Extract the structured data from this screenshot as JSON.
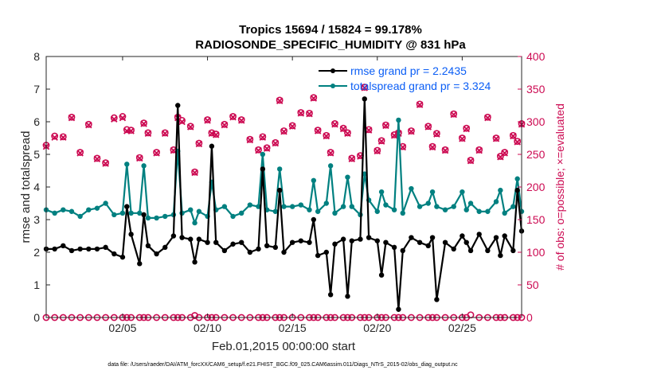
{
  "chart_data": {
    "type": "line",
    "title": "Tropics 15694 / 15824 = 99.178%",
    "subtitle": "RADIOSONDE_SPECIFIC_HUMIDITY @ 831 hPa",
    "xlabel": "Feb.01,2015 00:00:00 start",
    "ylabel": "rmse and totalspread",
    "y2label": "# of obs: o=possible; ×=evaluated",
    "xlim": [
      0.5,
      28.5
    ],
    "ylim": [
      0,
      8
    ],
    "y2lim": [
      0,
      400
    ],
    "xticks": [
      {
        "x": 5,
        "label": "02/05"
      },
      {
        "x": 10,
        "label": "02/10"
      },
      {
        "x": 15,
        "label": "02/15"
      },
      {
        "x": 20,
        "label": "02/20"
      },
      {
        "x": 25,
        "label": "02/25"
      }
    ],
    "yticks": [
      "0",
      "1",
      "2",
      "3",
      "4",
      "5",
      "6",
      "7",
      "8"
    ],
    "y2ticks": [
      "0",
      "50",
      "100",
      "150",
      "200",
      "250",
      "300",
      "350",
      "400"
    ],
    "legend_position": "top-right",
    "footnote": "data file: /Users/raeder/DAI/ATM_forcXX/CAM6_setup/f.e21.FHIST_BGC.f09_025.CAM6assim.011/Diags_NTrS_2015-02/obs_diag_output.nc",
    "x": [
      0.5,
      1,
      1.5,
      2,
      2.5,
      3,
      3.5,
      4,
      4.5,
      5,
      5.25,
      5.5,
      6,
      6.25,
      6.5,
      7,
      7.5,
      8,
      8.25,
      8.5,
      9,
      9.25,
      9.5,
      10,
      10.25,
      10.5,
      11,
      11.5,
      12,
      12.5,
      13,
      13.25,
      13.5,
      14,
      14.25,
      14.5,
      15,
      15.5,
      16,
      16.25,
      16.5,
      17,
      17.25,
      17.5,
      18,
      18.25,
      18.5,
      19,
      19.25,
      19.5,
      20,
      20.25,
      20.5,
      21,
      21.25,
      21.5,
      22,
      22.5,
      23,
      23.25,
      23.5,
      24,
      24.5,
      25,
      25.25,
      25.5,
      26,
      26.5,
      27,
      27.25,
      27.5,
      28,
      28.25,
      28.5
    ],
    "series": [
      {
        "name": "rmse grand pr = 2.2435",
        "axis": "left",
        "marker": "dot",
        "values": [
          2.1,
          2.1,
          2.2,
          2.05,
          2.1,
          2.1,
          2.1,
          2.15,
          1.95,
          1.85,
          3.4,
          2.55,
          1.65,
          3.15,
          2.2,
          1.95,
          2.15,
          2.5,
          6.5,
          2.45,
          2.4,
          1.7,
          2.4,
          2.3,
          5.25,
          2.3,
          2.05,
          2.25,
          2.3,
          2.0,
          2.1,
          4.55,
          2.2,
          2.15,
          3.9,
          2.0,
          2.3,
          2.35,
          2.3,
          3.0,
          1.9,
          2.0,
          0.7,
          2.25,
          2.4,
          0.65,
          2.35,
          2.4,
          6.7,
          2.45,
          2.35,
          1.3,
          2.3,
          2.15,
          0.25,
          2.05,
          2.45,
          2.3,
          2.2,
          2.45,
          0.55,
          2.3,
          2.1,
          2.5,
          2.3,
          2.05,
          2.55,
          2.05,
          2.45,
          1.9,
          2.5,
          2.05,
          3.9,
          2.65
        ]
      },
      {
        "name": "totalspread grand pr = 3.324",
        "axis": "left",
        "marker": "dot",
        "values": [
          3.3,
          3.2,
          3.3,
          3.25,
          3.1,
          3.3,
          3.35,
          3.5,
          3.15,
          3.2,
          4.7,
          3.2,
          3.2,
          4.65,
          3.05,
          3.05,
          3.1,
          3.15,
          5.1,
          3.2,
          3.3,
          2.9,
          3.25,
          3.1,
          4.15,
          3.3,
          3.4,
          3.1,
          3.2,
          3.45,
          3.4,
          5.0,
          3.3,
          3.25,
          4.55,
          3.4,
          3.4,
          3.45,
          3.3,
          4.2,
          3.25,
          3.5,
          4.65,
          3.2,
          3.4,
          4.3,
          3.4,
          3.15,
          4.4,
          3.6,
          3.25,
          3.85,
          3.45,
          3.3,
          6.05,
          3.2,
          3.95,
          3.4,
          3.5,
          3.85,
          3.4,
          3.3,
          3.4,
          3.85,
          3.3,
          3.5,
          3.25,
          3.25,
          3.55,
          3.9,
          3.2,
          3.4,
          4.25,
          3.25
        ]
      },
      {
        "name": "# of obs possible",
        "axis": "right",
        "marker": "circle",
        "values": [
          264,
          278,
          277,
          307,
          253,
          296,
          244,
          237,
          306,
          308,
          288,
          287,
          245,
          298,
          283,
          253,
          283,
          257,
          307,
          302,
          293,
          223,
          267,
          303,
          283,
          281,
          296,
          308,
          303,
          273,
          257,
          277,
          260,
          268,
          333,
          286,
          294,
          314,
          313,
          337,
          287,
          279,
          253,
          297,
          290,
          283,
          244,
          248,
          353,
          288,
          256,
          271,
          295,
          280,
          283,
          262,
          286,
          327,
          293,
          262,
          282,
          257,
          312,
          275,
          290,
          241,
          257,
          307,
          275,
          247,
          253,
          279,
          270,
          297
        ]
      },
      {
        "name": "# of obs evaluated",
        "axis": "right",
        "marker": "x",
        "values": [
          262,
          276,
          276,
          306,
          252,
          295,
          243,
          236,
          304,
          306,
          286,
          286,
          244,
          297,
          282,
          252,
          282,
          256,
          306,
          300,
          292,
          222,
          266,
          302,
          282,
          280,
          295,
          307,
          302,
          272,
          256,
          276,
          259,
          267,
          332,
          285,
          293,
          313,
          312,
          336,
          286,
          278,
          252,
          296,
          289,
          282,
          243,
          247,
          352,
          287,
          255,
          270,
          294,
          279,
          282,
          261,
          285,
          326,
          292,
          261,
          281,
          256,
          311,
          274,
          289,
          240,
          256,
          306,
          274,
          246,
          252,
          278,
          269,
          296
        ]
      },
      {
        "name": "# of obs possible (zero line)",
        "axis": "right",
        "marker": "circle",
        "values": [
          0,
          0,
          0,
          0,
          0,
          0,
          0,
          0,
          0,
          0,
          0,
          0,
          0,
          0,
          0,
          0,
          0,
          0,
          0,
          0,
          0,
          3,
          0,
          0,
          0,
          0,
          0,
          0,
          0,
          0,
          0,
          0,
          0,
          0,
          0,
          0,
          0,
          0,
          0,
          0,
          0,
          0,
          0,
          0,
          0,
          0,
          0,
          0,
          0,
          0,
          0,
          0,
          0,
          0,
          0,
          0,
          0,
          0,
          0,
          0,
          0,
          0,
          0,
          0,
          0,
          4,
          0,
          0,
          0,
          0,
          0,
          0,
          0,
          0
        ]
      }
    ],
    "colors": {
      "rmse": "#000000",
      "totalspread": "#008080",
      "obs": "#cc0a52",
      "legend_text": "#0b5ef5",
      "axis": "#262626"
    }
  }
}
